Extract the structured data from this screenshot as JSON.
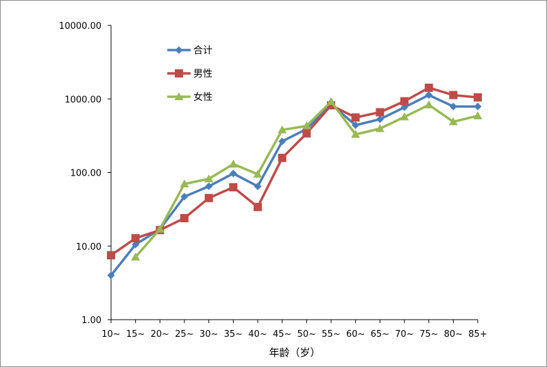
{
  "chart_data": {
    "type": "line",
    "title": "",
    "xlabel": "年龄（岁）",
    "ylabel": "",
    "y_scale": "log",
    "ylim": [
      1,
      10000
    ],
    "y_ticks": [
      "1.00",
      "10.00",
      "100.00",
      "1000.00",
      "10000.00"
    ],
    "categories": [
      "10~",
      "15~",
      "20~",
      "25~",
      "30~",
      "35~",
      "40~",
      "45~",
      "50~",
      "55~",
      "60~",
      "65~",
      "70~",
      "75~",
      "80~",
      "85+"
    ],
    "legend_position": "top-left",
    "grid": false,
    "series": [
      {
        "name": "合计",
        "color": "#4a7ebb",
        "marker": "diamond",
        "values": [
          4.0,
          10.5,
          17,
          47,
          65,
          97,
          65,
          265,
          390,
          850,
          440,
          530,
          770,
          1130,
          790,
          790
        ]
      },
      {
        "name": "男性",
        "color": "#be4b48",
        "marker": "square",
        "values": [
          7.5,
          12.8,
          16.5,
          24,
          45,
          63,
          34,
          158,
          340,
          820,
          560,
          660,
          930,
          1420,
          1130,
          1050
        ]
      },
      {
        "name": "女性",
        "color": "#98b954",
        "marker": "triangle",
        "values": [
          null,
          7.1,
          17,
          70,
          82,
          130,
          95,
          380,
          430,
          920,
          330,
          395,
          570,
          830,
          490,
          590
        ]
      }
    ]
  }
}
